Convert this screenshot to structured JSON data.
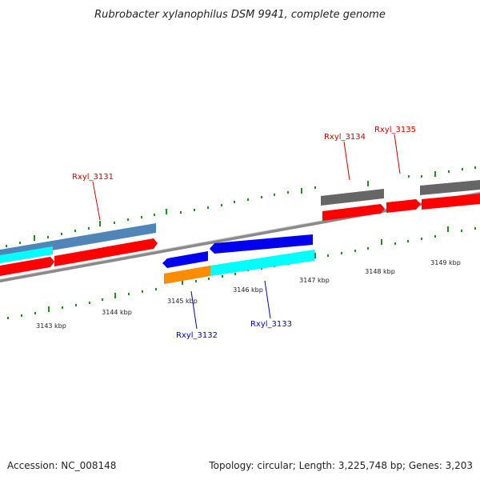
{
  "title": "Rubrobacter xylanophilus DSM 9941, complete genome",
  "footer": {
    "accession": "Accession: NC_008148",
    "stats": "Topology: circular; Length: 3,225,748 bp; Genes: 3,203"
  },
  "kbp_labels": [
    "3143 kbp",
    "3144 kbp",
    "3145 kbp",
    "3146 kbp",
    "3147 kbp",
    "3148 kbp",
    "3149 kbp"
  ],
  "gene_labels_top": [
    "Rxyl_3131",
    "Rxyl_3134",
    "Rxyl_3135"
  ],
  "gene_labels_bottom": [
    "Rxyl_3132",
    "Rxyl_3133"
  ],
  "colors": {
    "red_label": "#cc0000",
    "blue_label": "#0000cc",
    "tick": "#228b22",
    "backbone": "#888888",
    "gene_red": "#ff0000",
    "gene_cyan": "#00ffff",
    "gene_steelblue": "#4f86b7",
    "gene_gray": "#666666",
    "gene_blue": "#0000ee",
    "gene_orange": "#ff8c00"
  }
}
